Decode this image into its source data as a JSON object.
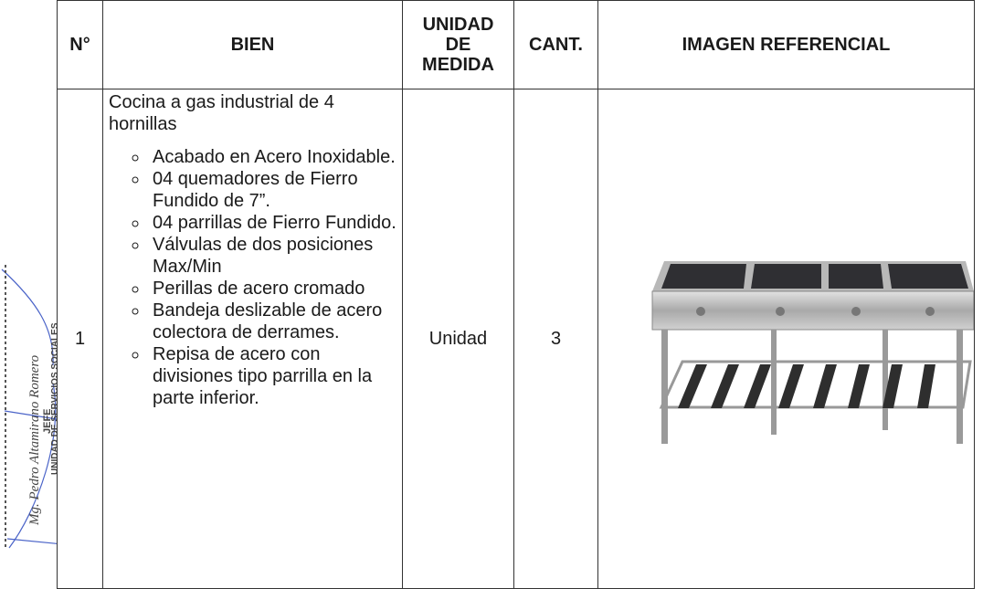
{
  "table": {
    "headers": [
      "N°",
      "BIEN",
      "UNIDAD DE MEDIDA",
      "CANT.",
      "IMAGEN REFERENCIAL"
    ],
    "rows": [
      {
        "number": "1",
        "item": "Cocina a gas industrial de 4 hornillas",
        "features": [
          "Acabado en Acero Inoxidable.",
          "04 quemadores de Fierro Fundido de 7”.",
          "04 parrillas de Fierro Fundido.",
          "Válvulas de dos posiciones Max/Min",
          "Perillas de acero cromado",
          "Bandeja deslizable de acero colectora de derrames.",
          "Repisa de acero con divisiones tipo parrilla en la parte inferior."
        ],
        "unit": "Unidad",
        "quantity": "3"
      }
    ]
  },
  "stamp": {
    "name": "Mg. Pedro Altamirano Romero",
    "role": "JEFE",
    "unit": "UNIDAD DE SERVICIOS SOCIALES"
  }
}
